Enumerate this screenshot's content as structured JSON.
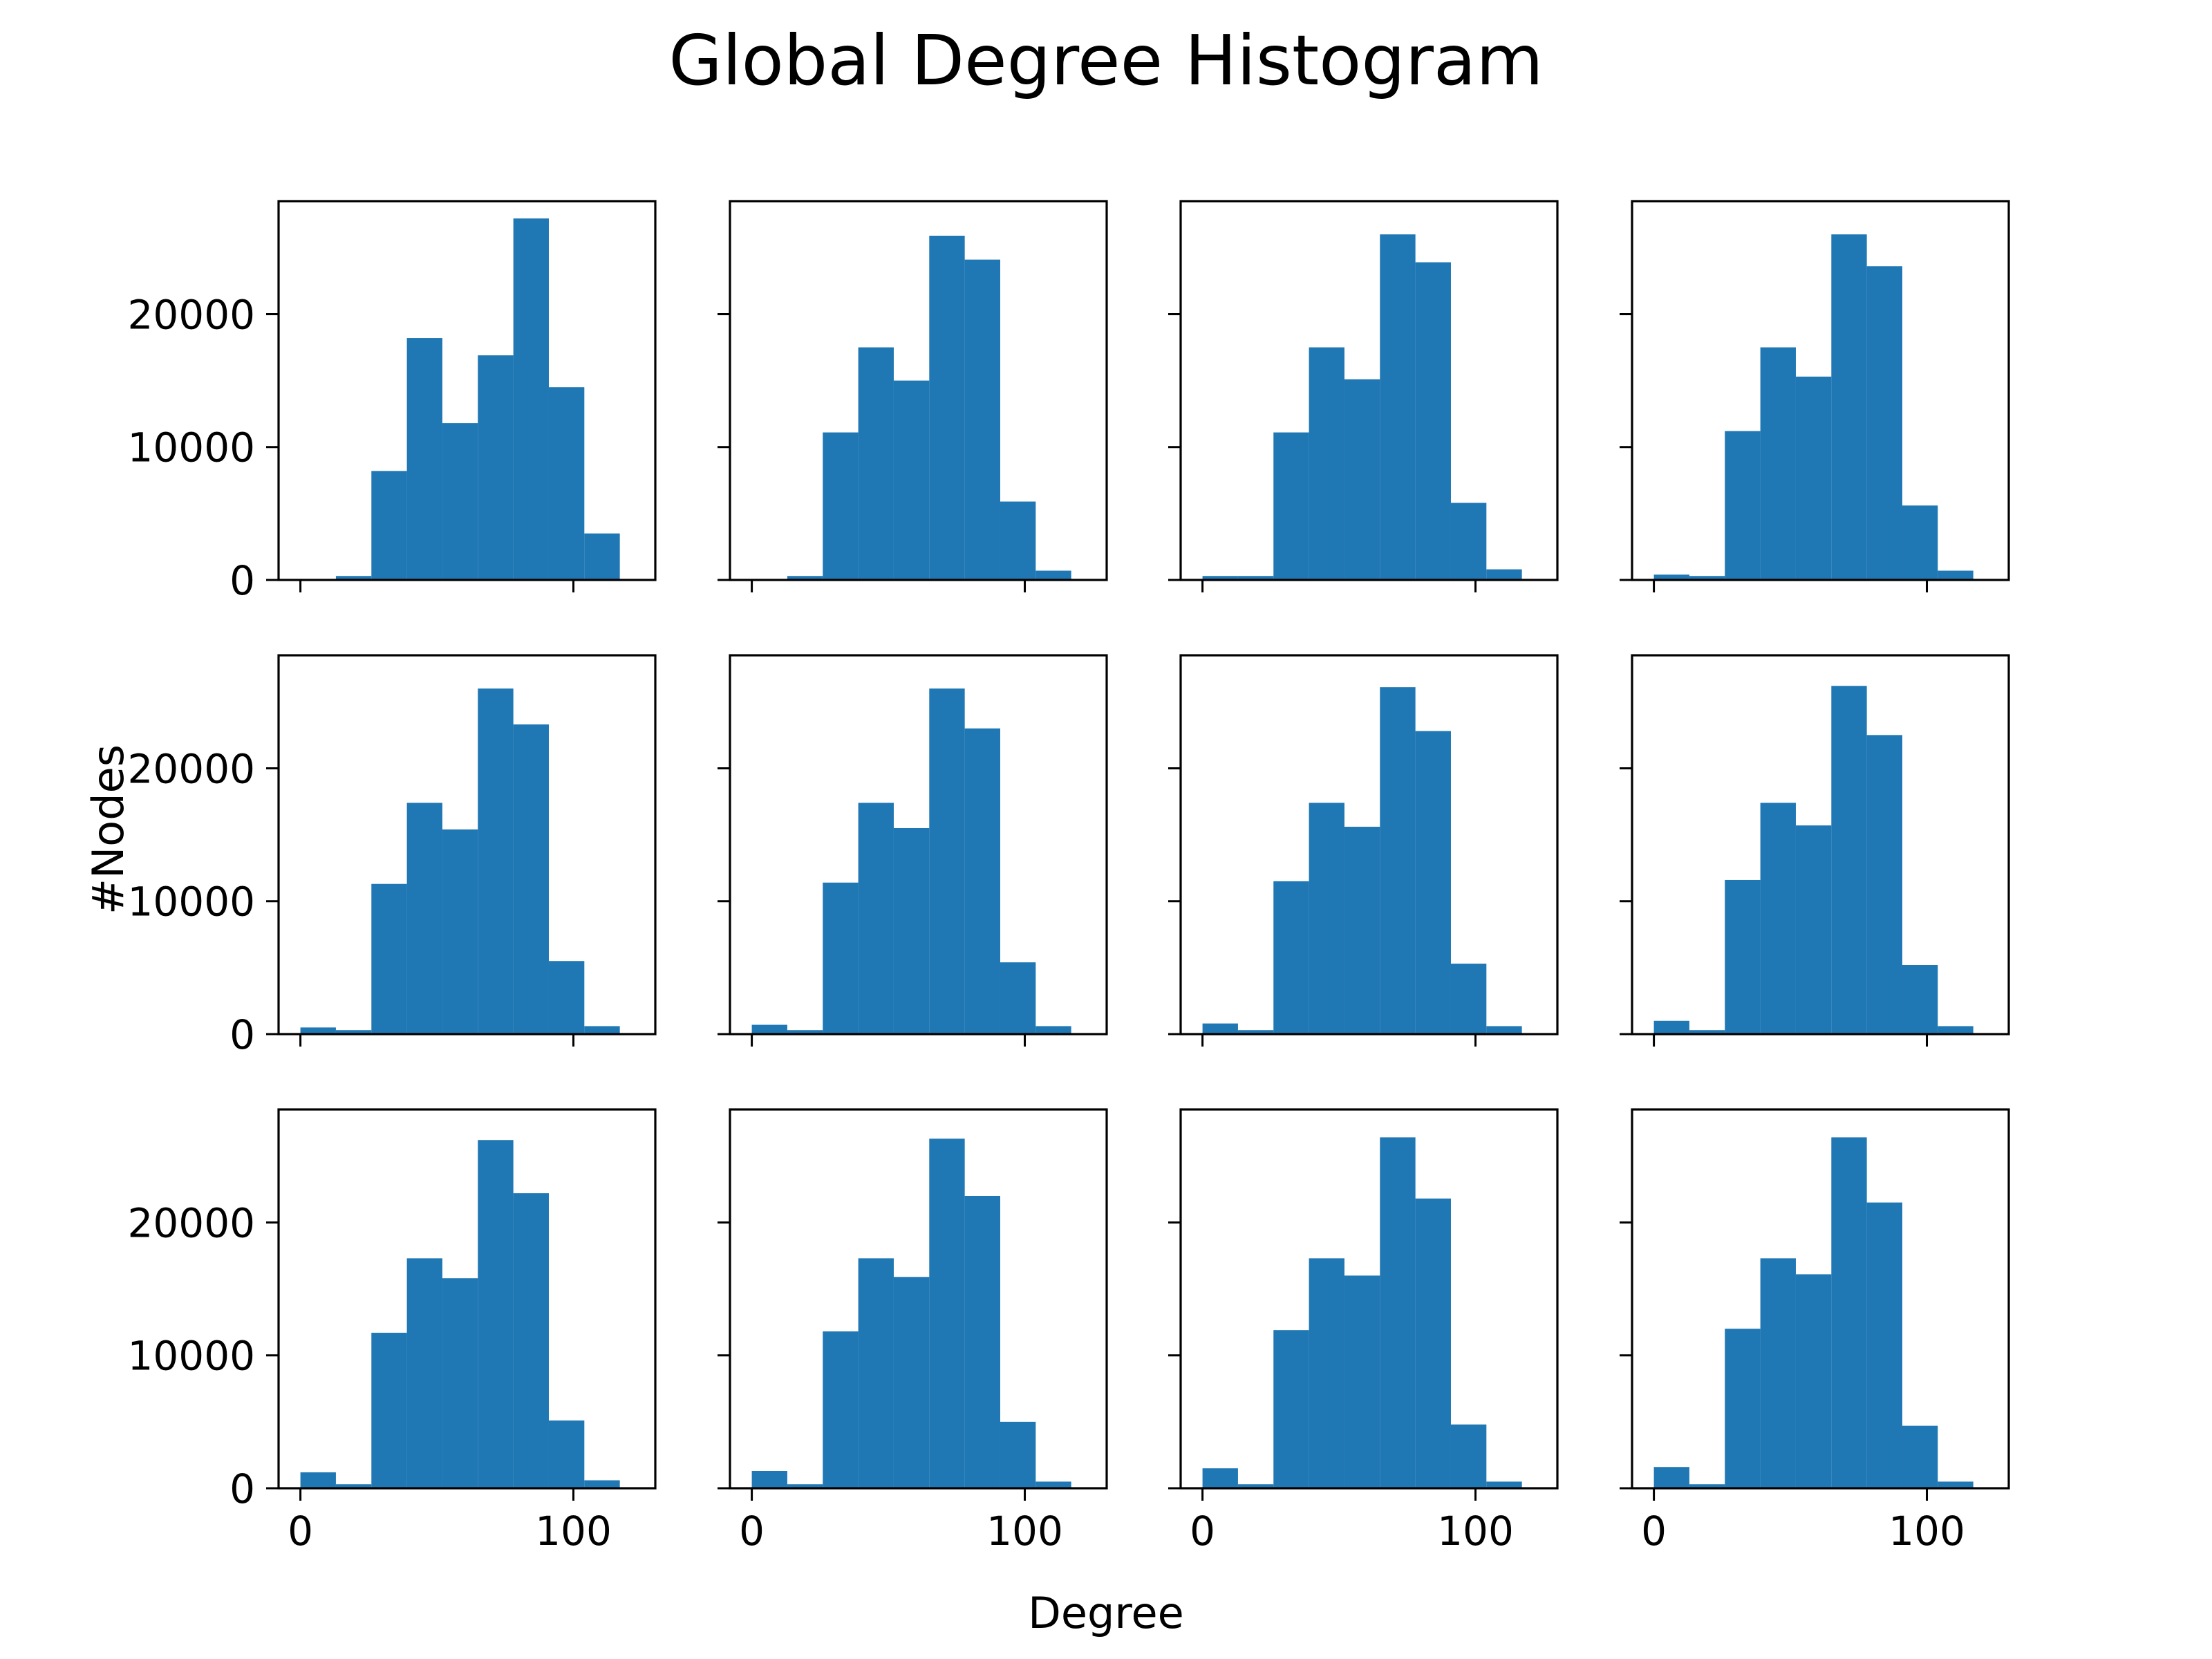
{
  "figure": {
    "title": "Global Degree Histogram",
    "xlabel": "Degree",
    "ylabel": "#Nodes"
  },
  "chart_data": {
    "type": "bar",
    "layout": "grid 3x4, shared x and y axes",
    "bar_color": "#1f77b4",
    "bin_edges": [
      0,
      13,
      26,
      39,
      52,
      65,
      78,
      91,
      104,
      117
    ],
    "xlim": [
      -8,
      130
    ],
    "ylim": [
      0,
      28500
    ],
    "x_ticks": [
      0,
      100
    ],
    "y_ticks": [
      0,
      10000,
      20000
    ],
    "x_tick_labels": [
      "0",
      "100"
    ],
    "y_tick_labels": [
      "0",
      "10000",
      "20000"
    ],
    "panels": [
      {
        "values": [
          0,
          300,
          8200,
          18200,
          11800,
          16900,
          27200,
          14500,
          3500,
          300
        ]
      },
      {
        "values": [
          0,
          300,
          11100,
          17500,
          15000,
          25900,
          24100,
          5900,
          700,
          0
        ]
      },
      {
        "values": [
          300,
          300,
          11100,
          17500,
          15100,
          26000,
          23900,
          5800,
          800,
          0
        ]
      },
      {
        "values": [
          400,
          300,
          11200,
          17500,
          15300,
          26000,
          23600,
          5600,
          700,
          0
        ]
      },
      {
        "values": [
          500,
          300,
          11300,
          17400,
          15400,
          26000,
          23300,
          5500,
          600,
          0
        ]
      },
      {
        "values": [
          700,
          300,
          11400,
          17400,
          15500,
          26000,
          23000,
          5400,
          600,
          0
        ]
      },
      {
        "values": [
          800,
          300,
          11500,
          17400,
          15600,
          26100,
          22800,
          5300,
          600,
          0
        ]
      },
      {
        "values": [
          1000,
          300,
          11600,
          17400,
          15700,
          26200,
          22500,
          5200,
          600,
          0
        ]
      },
      {
        "values": [
          1200,
          300,
          11700,
          17300,
          15800,
          26200,
          22200,
          5100,
          600,
          0
        ]
      },
      {
        "values": [
          1300,
          300,
          11800,
          17300,
          15900,
          26300,
          22000,
          5000,
          500,
          0
        ]
      },
      {
        "values": [
          1500,
          300,
          11900,
          17300,
          16000,
          26400,
          21800,
          4800,
          500,
          0
        ]
      },
      {
        "values": [
          1600,
          300,
          12000,
          17300,
          16100,
          26400,
          21500,
          4700,
          500,
          0
        ]
      }
    ]
  }
}
